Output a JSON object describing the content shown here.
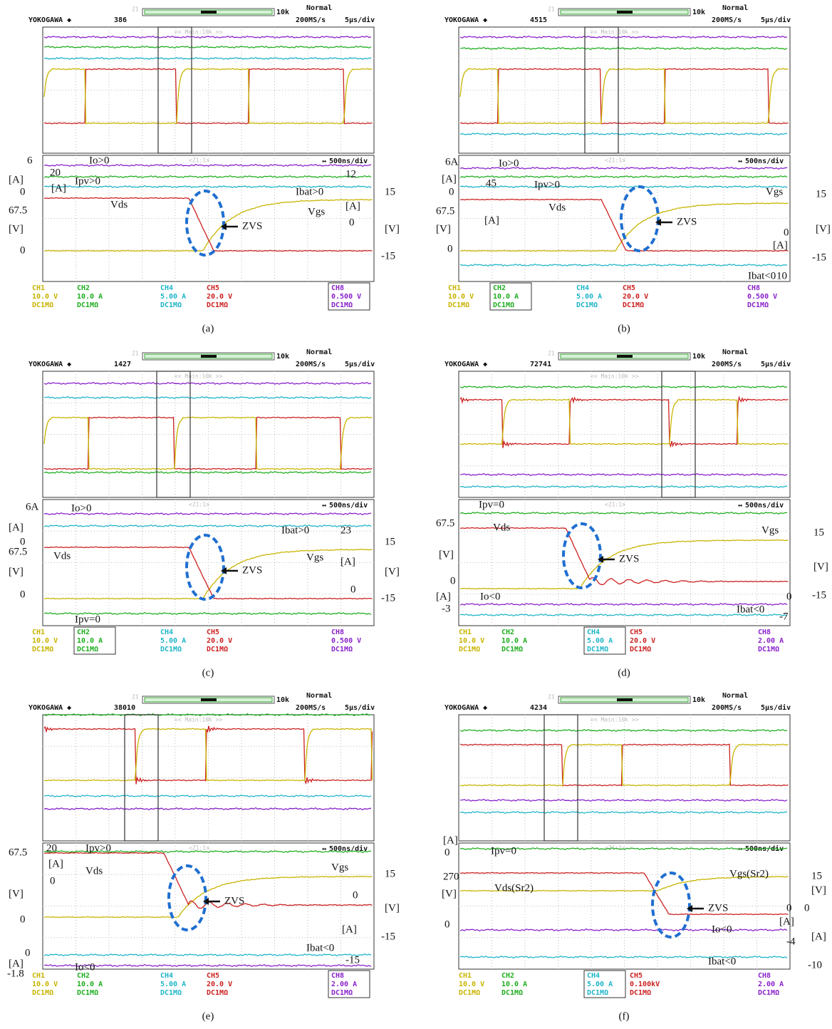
{
  "panels": [
    {
      "caption": "(a)",
      "header": {
        "brand": "YOKOGAWA ◆",
        "count": 386,
        "mode": "Normal",
        "sample_rate": "200MS/s",
        "timebase": "5μs/div",
        "zoom_timebase": "500ns/div",
        "zoom_depth": "10k",
        "zoom_id": "Z1",
        "main_label": "<< Main:10k >>",
        "zoom_label": "<Z1:1>"
      },
      "channels": [
        {
          "name": "CH1",
          "scale": "10.0 V",
          "coupling": "DC1MΩ",
          "color": "#c8b400"
        },
        {
          "name": "CH2",
          "scale": "10.0 A",
          "coupling": "DC1MΩ",
          "color": "#1fae1f"
        },
        {
          "name": "CH4",
          "scale": "5.00 A",
          "coupling": "DC1MΩ",
          "color": "#1fb5c8"
        },
        {
          "name": "CH5",
          "scale": "20.0 V",
          "coupling": "DC1MΩ",
          "color": "#cc2020"
        },
        {
          "name": "CH8",
          "scale": "0.500 V",
          "coupling": "DC1MΩ",
          "color": "#8a22cc"
        }
      ],
      "annotations": [
        "6",
        "[A]",
        "0",
        "20",
        "[A]",
        "Ipv>0",
        "Io>0",
        "12",
        "Ibat>0",
        "[A]",
        "0",
        "Vgs",
        "Vds",
        "67.5",
        "[V]",
        "0",
        "ZVS",
        "15",
        "[V]",
        "-15"
      ]
    },
    {
      "caption": "(b)",
      "header": {
        "brand": "YOKOGAWA ◆",
        "count": 4515,
        "mode": "Normal",
        "sample_rate": "200MS/s",
        "timebase": "5μs/div",
        "zoom_timebase": "500ns/div",
        "zoom_depth": "10k",
        "zoom_id": "Z1",
        "main_label": "<< Main:10k >>",
        "zoom_label": "<Z1:1>"
      },
      "channels": [
        {
          "name": "CH1",
          "scale": "10.0 V",
          "coupling": "DC1MΩ",
          "color": "#c8b400"
        },
        {
          "name": "CH2",
          "scale": "10.0 A",
          "coupling": "DC1MΩ",
          "color": "#1fae1f"
        },
        {
          "name": "CH4",
          "scale": "5.00 A",
          "coupling": "DC1MΩ",
          "color": "#1fb5c8"
        },
        {
          "name": "CH5",
          "scale": "20.0 V",
          "coupling": "DC1MΩ",
          "color": "#cc2020"
        },
        {
          "name": "CH8",
          "scale": "0.500 V",
          "coupling": "DC1MΩ",
          "color": "#8a22cc"
        }
      ],
      "annotations": [
        "6A",
        "[A]",
        "0",
        "45",
        "[A]",
        "Io>0",
        "Ipv>0",
        "Vds",
        "67.5",
        "[V]",
        "0",
        "ZVS",
        "Vgs",
        "15",
        "[V]",
        "-15",
        "0",
        "[A]",
        "Ibat<0",
        "10"
      ]
    },
    {
      "caption": "(c)",
      "header": {
        "brand": "YOKOGAWA ◆",
        "count": 1427,
        "mode": "Normal",
        "sample_rate": "200MS/s",
        "timebase": "5μs/div",
        "zoom_timebase": "500ns/div",
        "zoom_depth": "10k",
        "zoom_id": "Z1",
        "main_label": "<< Main:10k >>",
        "zoom_label": "<Z1:1>"
      },
      "channels": [
        {
          "name": "CH1",
          "scale": "10.0 V",
          "coupling": "DC1MΩ",
          "color": "#c8b400"
        },
        {
          "name": "CH2",
          "scale": "10.0 A",
          "coupling": "DC1MΩ",
          "color": "#1fae1f"
        },
        {
          "name": "CH4",
          "scale": "5.00 A",
          "coupling": "DC1MΩ",
          "color": "#1fb5c8"
        },
        {
          "name": "CH5",
          "scale": "20.0 V",
          "coupling": "DC1MΩ",
          "color": "#cc2020"
        },
        {
          "name": "CH8",
          "scale": "0.500 V",
          "coupling": "DC1MΩ",
          "color": "#8a22cc"
        }
      ],
      "annotations": [
        "6A",
        "[A]",
        "0",
        "Io>0",
        "67.5",
        "Vds",
        "[V]",
        "0",
        "Ipv=0",
        "ZVS",
        "Ibat>0",
        "23",
        "Vgs",
        "[A]",
        "0",
        "15",
        "[V]",
        "-15"
      ]
    },
    {
      "caption": "(d)",
      "header": {
        "brand": "YOKOGAWA ◆",
        "count": 72741,
        "mode": "Normal",
        "sample_rate": "200MS/s",
        "timebase": "5μs/div",
        "zoom_timebase": "500ns/div",
        "zoom_depth": "10k",
        "zoom_id": "Z1",
        "main_label": "<< Main:10k >>",
        "zoom_label": "<Z1:1>"
      },
      "channels": [
        {
          "name": "CH1",
          "scale": "10.0 V",
          "coupling": "DC1MΩ",
          "color": "#c8b400"
        },
        {
          "name": "CH2",
          "scale": "10.0 A",
          "coupling": "DC1MΩ",
          "color": "#1fae1f"
        },
        {
          "name": "CH4",
          "scale": "5.00 A",
          "coupling": "DC1MΩ",
          "color": "#1fb5c8"
        },
        {
          "name": "CH5",
          "scale": "20.0 V",
          "coupling": "DC1MΩ",
          "color": "#cc2020"
        },
        {
          "name": "CH8",
          "scale": "2.00 A",
          "coupling": "DC1MΩ",
          "color": "#8a22cc"
        }
      ],
      "annotations": [
        "Ipv=0",
        "67.5",
        "Vds",
        "[V]",
        "0",
        "[A]",
        "-3",
        "Io<0",
        "ZVS",
        "Vgs",
        "15",
        "[V]",
        "-15",
        "0",
        "Ibat<0",
        "-7"
      ]
    },
    {
      "caption": "(e)",
      "header": {
        "brand": "YOKOGAWA ◆",
        "count": 38010,
        "mode": "Normal",
        "sample_rate": "200MS/s",
        "timebase": "5μs/div",
        "zoom_timebase": "500ns/div",
        "zoom_depth": "10k",
        "zoom_id": "Z1",
        "main_label": "<< Main:10k >>",
        "zoom_label": "<Z1:1>"
      },
      "channels": [
        {
          "name": "CH1",
          "scale": "10.0 V",
          "coupling": "DC1MΩ",
          "color": "#c8b400"
        },
        {
          "name": "CH2",
          "scale": "10.0 A",
          "coupling": "DC1MΩ",
          "color": "#1fae1f"
        },
        {
          "name": "CH4",
          "scale": "5.00 A",
          "coupling": "DC1MΩ",
          "color": "#1fb5c8"
        },
        {
          "name": "CH5",
          "scale": "20.0 V",
          "coupling": "DC1MΩ",
          "color": "#cc2020"
        },
        {
          "name": "CH8",
          "scale": "2.00 A",
          "coupling": "DC1MΩ",
          "color": "#8a22cc"
        }
      ],
      "annotations": [
        "20",
        "[A]",
        "0",
        "Ipv>0",
        "67.5",
        "Vds",
        "[V]",
        "0",
        "ZVS",
        "Vgs",
        "15",
        "[V]",
        "-15",
        "0",
        "[A]",
        "Ibat<0",
        "-15",
        "0",
        "[A]",
        "-1.8",
        "Io<0"
      ]
    },
    {
      "caption": "(f)",
      "header": {
        "brand": "YOKOGAWA ◆",
        "count": 4234,
        "mode": "Normal",
        "sample_rate": "200MS/s",
        "timebase": "5μs/div",
        "zoom_timebase": "500ns/div",
        "zoom_depth": "10k",
        "zoom_id": "Z1",
        "main_label": "<< Main:10k >>",
        "zoom_label": "<Z1:1>"
      },
      "channels": [
        {
          "name": "CH1",
          "scale": "10.0 V",
          "coupling": "DC1MΩ",
          "color": "#c8b400"
        },
        {
          "name": "CH2",
          "scale": "10.0 A",
          "coupling": "DC1MΩ",
          "color": "#1fae1f"
        },
        {
          "name": "CH4",
          "scale": "5.00 A",
          "coupling": "DC1MΩ",
          "color": "#1fb5c8"
        },
        {
          "name": "CH5",
          "scale": "0.100kV",
          "coupling": "DC1MΩ",
          "color": "#cc2020"
        },
        {
          "name": "CH8",
          "scale": "2.00 A",
          "coupling": "DC1MΩ",
          "color": "#8a22cc"
        }
      ],
      "annotations": [
        "[A]",
        "0",
        "Ipv=0",
        "270",
        "Vds(Sr2)",
        "[V]",
        "0",
        "ZVS",
        "Vgs(Sr2)",
        "15",
        "[V]",
        "0",
        "0",
        "[A]",
        "[A]",
        "Io<0",
        "-4",
        "-10",
        "Ibat<0"
      ]
    }
  ]
}
